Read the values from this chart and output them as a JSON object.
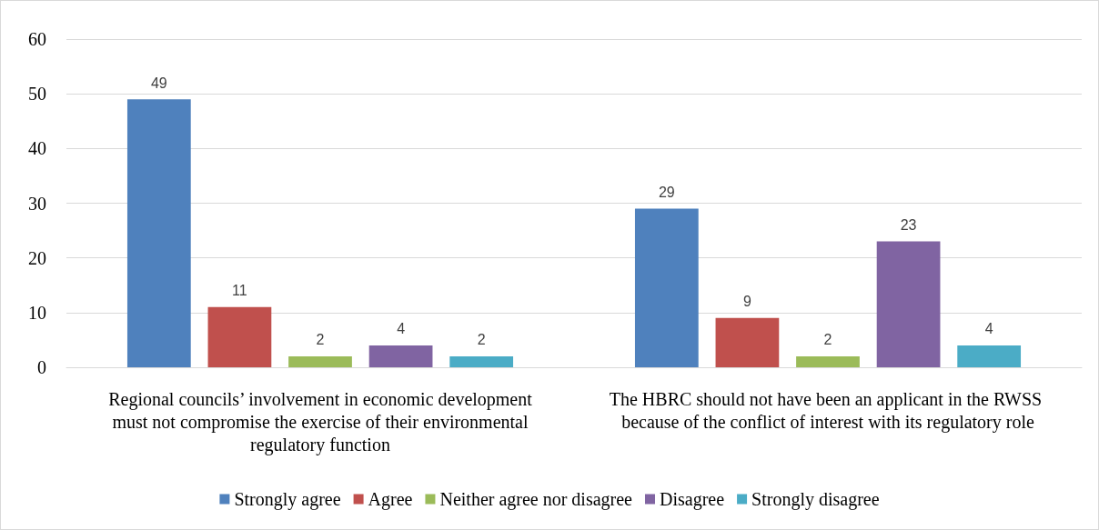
{
  "chart_data": {
    "type": "bar",
    "categories": [
      "Regional councils’ involvement in economic development must not compromise the exercise of their environmental regulatory function",
      "The HBRC should not have been an applicant in the RWSS because of the conflict of interest with its regulatory role"
    ],
    "series": [
      {
        "name": "Strongly agree",
        "color": "#4f81bd",
        "values": [
          49,
          29
        ]
      },
      {
        "name": "Agree",
        "color": "#c0504d",
        "values": [
          11,
          9
        ]
      },
      {
        "name": "Neither agree nor disagree",
        "color": "#9bbb59",
        "values": [
          2,
          2
        ]
      },
      {
        "name": "Disagree",
        "color": "#8064a2",
        "values": [
          4,
          23
        ]
      },
      {
        "name": "Strongly disagree",
        "color": "#4bacc6",
        "values": [
          2,
          4
        ]
      }
    ],
    "ylim": [
      0,
      60
    ],
    "yticks": [
      0,
      10,
      20,
      30,
      40,
      50,
      60
    ],
    "grid": "y",
    "legend": "bottom",
    "data_labels": true
  }
}
